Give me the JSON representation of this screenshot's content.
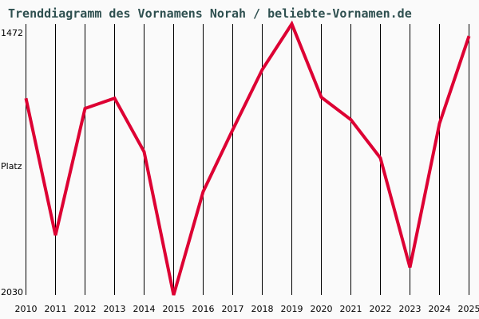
{
  "title": "Trenddiagramm des Vornamens Norah / beliebte-Vornamen.de",
  "y_axis": {
    "top_label": "1472",
    "middle_label": "Platz",
    "bottom_label": "2030"
  },
  "colors": {
    "line": "#dd0033",
    "title": "#2f5050",
    "grid": "#000000",
    "background": "#fafafa"
  },
  "chart_data": {
    "type": "line",
    "title": "Trenddiagramm des Vornamens Norah / beliebte-Vornamen.de",
    "xlabel": "",
    "ylabel": "Platz",
    "ylim": [
      2030,
      1472
    ],
    "y_inverted": true,
    "grid": "vertical",
    "categories": [
      "2010",
      "2011",
      "2012",
      "2013",
      "2014",
      "2015",
      "2016",
      "2017",
      "2018",
      "2019",
      "2020",
      "2021",
      "2022",
      "2023",
      "2024",
      "2025"
    ],
    "series": [
      {
        "name": "Norah",
        "values": [
          1625,
          1907,
          1646,
          1625,
          1735,
          2030,
          1817,
          1690,
          1566,
          1472,
          1623,
          1669,
          1748,
          1973,
          1677,
          1497
        ]
      }
    ]
  }
}
